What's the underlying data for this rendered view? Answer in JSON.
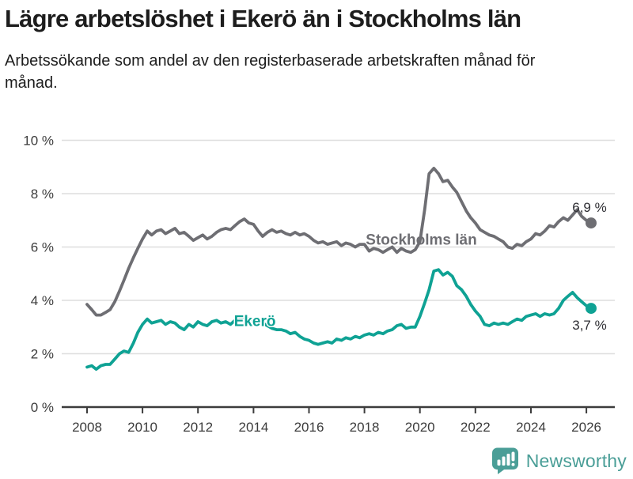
{
  "header": {
    "title": "Lägre arbetslöshet i Ekerö än i Stockholms län",
    "subtitle": "Arbetssökande som andel av den registerbaserade arbetskraften månad för månad."
  },
  "footer": {
    "brand": "Newsworthy",
    "brand_color": "#4a9e97"
  },
  "colors": {
    "stockholm_line": "#6e6e73",
    "ekero_line": "#0fa294",
    "gridline": "#dedede",
    "axis": "#3c3c3c",
    "value_label": "#2e2e33"
  },
  "chart_data": {
    "type": "line",
    "title": "Lägre arbetslöshet i Ekerö än i Stockholms län",
    "ylabel": "",
    "xlabel": "",
    "grid": true,
    "legend_position": "inline-labels",
    "x_axis": {
      "ticks": [
        2008,
        2010,
        2012,
        2014,
        2016,
        2018,
        2020,
        2022,
        2024,
        2026
      ],
      "range": [
        2007.1,
        2027.0
      ]
    },
    "y_axis": {
      "tick_values": [
        0,
        2,
        4,
        6,
        8,
        10
      ],
      "tick_labels": [
        "0 %",
        "2 %",
        "4 %",
        "6 %",
        "8 %",
        "10 %"
      ],
      "range": [
        0,
        10
      ],
      "unit": "%"
    },
    "x": [
      2008,
      2008.17,
      2008.33,
      2008.5,
      2008.67,
      2008.83,
      2009,
      2009.17,
      2009.33,
      2009.5,
      2009.67,
      2009.83,
      2010,
      2010.17,
      2010.33,
      2010.5,
      2010.67,
      2010.83,
      2011,
      2011.17,
      2011.33,
      2011.5,
      2011.67,
      2011.83,
      2012,
      2012.17,
      2012.33,
      2012.5,
      2012.67,
      2012.83,
      2013,
      2013.17,
      2013.33,
      2013.5,
      2013.67,
      2013.83,
      2014,
      2014.17,
      2014.33,
      2014.5,
      2014.67,
      2014.83,
      2015,
      2015.17,
      2015.33,
      2015.5,
      2015.67,
      2015.83,
      2016,
      2016.17,
      2016.33,
      2016.5,
      2016.67,
      2016.83,
      2017,
      2017.17,
      2017.33,
      2017.5,
      2017.67,
      2017.83,
      2018,
      2018.17,
      2018.33,
      2018.5,
      2018.67,
      2018.83,
      2019,
      2019.17,
      2019.33,
      2019.5,
      2019.67,
      2019.83,
      2020,
      2020.17,
      2020.33,
      2020.5,
      2020.67,
      2020.83,
      2021,
      2021.17,
      2021.33,
      2021.5,
      2021.67,
      2021.83,
      2022,
      2022.17,
      2022.33,
      2022.5,
      2022.67,
      2022.83,
      2023,
      2023.17,
      2023.33,
      2023.5,
      2023.67,
      2023.83,
      2024,
      2024.17,
      2024.33,
      2024.5,
      2024.67,
      2024.83,
      2025,
      2025.17,
      2025.33,
      2025.5,
      2025.67,
      2025.83,
      2026,
      2026.17
    ],
    "series": [
      {
        "name": "Stockholms län",
        "color": "#6e6e73",
        "end_value": 6.9,
        "end_label": "6,9 %",
        "end_label_position": "above",
        "label_anchor": {
          "x": 2020.05,
          "y": 6.3
        },
        "label_halo": false,
        "values": [
          3.85,
          3.65,
          3.45,
          3.45,
          3.55,
          3.65,
          3.95,
          4.35,
          4.75,
          5.2,
          5.6,
          5.95,
          6.3,
          6.6,
          6.45,
          6.6,
          6.65,
          6.5,
          6.6,
          6.7,
          6.5,
          6.55,
          6.4,
          6.25,
          6.35,
          6.45,
          6.3,
          6.4,
          6.55,
          6.65,
          6.7,
          6.65,
          6.8,
          6.95,
          7.05,
          6.9,
          6.85,
          6.6,
          6.4,
          6.55,
          6.65,
          6.55,
          6.6,
          6.5,
          6.45,
          6.55,
          6.45,
          6.5,
          6.4,
          6.25,
          6.15,
          6.2,
          6.1,
          6.15,
          6.2,
          6.05,
          6.15,
          6.1,
          6.0,
          6.1,
          6.1,
          5.85,
          5.95,
          5.9,
          5.8,
          5.9,
          6.0,
          5.8,
          5.95,
          5.85,
          5.8,
          5.9,
          6.2,
          7.4,
          8.75,
          8.95,
          8.75,
          8.45,
          8.5,
          8.25,
          8.05,
          7.7,
          7.35,
          7.1,
          6.9,
          6.65,
          6.55,
          6.45,
          6.4,
          6.3,
          6.2,
          6.0,
          5.95,
          6.1,
          6.05,
          6.2,
          6.3,
          6.5,
          6.45,
          6.6,
          6.8,
          6.75,
          6.95,
          7.1,
          7.0,
          7.2,
          7.4,
          7.15,
          7.0,
          6.9
        ]
      },
      {
        "name": "Ekerö",
        "color": "#0fa294",
        "end_value": 3.7,
        "end_label": "3,7 %",
        "end_label_position": "below",
        "label_anchor": {
          "x": 2014.05,
          "y": 3.25
        },
        "label_halo": true,
        "values": [
          1.5,
          1.55,
          1.42,
          1.55,
          1.6,
          1.6,
          1.8,
          2.0,
          2.1,
          2.05,
          2.4,
          2.8,
          3.1,
          3.3,
          3.15,
          3.2,
          3.25,
          3.1,
          3.2,
          3.15,
          3.0,
          2.9,
          3.1,
          3.0,
          3.2,
          3.1,
          3.05,
          3.2,
          3.25,
          3.15,
          3.2,
          3.1,
          3.25,
          3.3,
          3.35,
          3.3,
          3.3,
          3.25,
          3.15,
          3.05,
          2.95,
          2.9,
          2.9,
          2.85,
          2.75,
          2.8,
          2.65,
          2.55,
          2.5,
          2.4,
          2.35,
          2.4,
          2.45,
          2.4,
          2.55,
          2.5,
          2.6,
          2.55,
          2.65,
          2.6,
          2.7,
          2.75,
          2.7,
          2.8,
          2.75,
          2.85,
          2.9,
          3.05,
          3.1,
          2.95,
          3.0,
          3.0,
          3.4,
          3.9,
          4.4,
          5.1,
          5.15,
          4.95,
          5.05,
          4.9,
          4.55,
          4.4,
          4.15,
          3.85,
          3.6,
          3.4,
          3.1,
          3.05,
          3.15,
          3.1,
          3.15,
          3.1,
          3.2,
          3.3,
          3.25,
          3.4,
          3.45,
          3.5,
          3.4,
          3.5,
          3.45,
          3.5,
          3.7,
          4.0,
          4.15,
          4.3,
          4.1,
          3.95,
          3.8,
          3.7
        ]
      }
    ]
  }
}
